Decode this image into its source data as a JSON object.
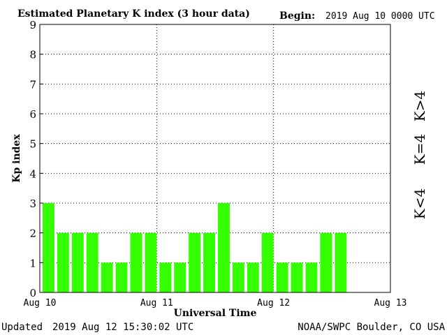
{
  "header": {
    "title": "Estimated Planetary K index (3 hour data)",
    "begin_label": "Begin:",
    "begin_value": "2019 Aug 10 0000 UTC"
  },
  "footer": {
    "updated_label": "Updated",
    "updated_value": "2019 Aug 12 15:30:02 UTC",
    "source": "NOAA/SWPC Boulder, CO USA"
  },
  "colors": {
    "bar": "#33ff00",
    "k_low": "#33ee00",
    "k_equal": "#ffcc00",
    "k_high": "#ff3300"
  },
  "legend": {
    "k_high": "K>4",
    "k_equal": "K=4",
    "k_low": "K<4"
  },
  "chart_data": {
    "type": "bar",
    "title": "Estimated Planetary K index (3 hour data)",
    "xlabel": "Universal Time",
    "ylabel": "Kp index",
    "ylim": [
      0,
      9
    ],
    "yticks": [
      "0",
      "1",
      "2",
      "3",
      "4",
      "5",
      "6",
      "7",
      "8",
      "9"
    ],
    "xticks": [
      "Aug 10",
      "Aug 11",
      "Aug 12",
      "Aug 13"
    ],
    "slots_total": 24,
    "values": [
      3,
      2,
      2,
      2,
      1,
      1,
      2,
      2,
      1,
      1,
      2,
      2,
      3,
      1,
      1,
      2,
      1,
      1,
      1,
      2,
      2
    ],
    "grid": true
  }
}
